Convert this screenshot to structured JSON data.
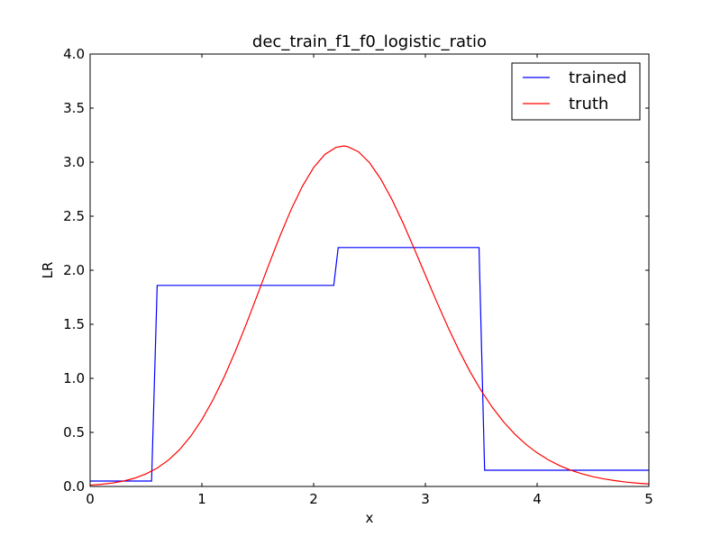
{
  "chart_data": {
    "type": "line",
    "title": "dec_train_f1_f0_logistic_ratio",
    "xlabel": "x",
    "ylabel": "LR",
    "xlim": [
      0,
      5
    ],
    "ylim": [
      0,
      4
    ],
    "x_ticks": [
      0,
      1,
      2,
      3,
      4,
      5
    ],
    "x_tick_labels": [
      "0",
      "1",
      "2",
      "3",
      "4",
      "5"
    ],
    "y_ticks": [
      0,
      0.5,
      1,
      1.5,
      2,
      2.5,
      3,
      3.5,
      4
    ],
    "y_tick_labels": [
      "0.0",
      "0.5",
      "1.0",
      "1.5",
      "2.0",
      "2.5",
      "3.0",
      "3.5",
      "4.0"
    ],
    "grid": false,
    "legend": {
      "position": "top-right"
    },
    "series": [
      {
        "name": "trained",
        "color": "#0000ff",
        "x": [
          0,
          0.55,
          0.6,
          2.18,
          2.22,
          3.48,
          3.53,
          5.0
        ],
        "y": [
          0.05,
          0.05,
          1.86,
          1.86,
          2.21,
          2.21,
          0.15,
          0.15
        ]
      },
      {
        "name": "truth",
        "color": "#ff0000",
        "x": [
          0.0,
          0.1,
          0.2,
          0.3,
          0.4,
          0.5,
          0.6,
          0.7,
          0.8,
          0.9,
          1.0,
          1.1,
          1.2,
          1.3,
          1.4,
          1.5,
          1.6,
          1.7,
          1.8,
          1.9,
          2.0,
          2.1,
          2.2,
          2.27,
          2.3,
          2.4,
          2.5,
          2.6,
          2.7,
          2.8,
          2.9,
          3.0,
          3.1,
          3.2,
          3.3,
          3.4,
          3.5,
          3.6,
          3.7,
          3.8,
          3.9,
          4.0,
          4.1,
          4.2,
          4.3,
          4.4,
          4.5,
          4.6,
          4.7,
          4.8,
          4.9,
          5.0
        ],
        "y": [
          0.012,
          0.02,
          0.032,
          0.05,
          0.077,
          0.116,
          0.17,
          0.243,
          0.34,
          0.464,
          0.618,
          0.802,
          1.014,
          1.252,
          1.51,
          1.781,
          2.055,
          2.32,
          2.565,
          2.778,
          2.95,
          3.071,
          3.137,
          3.15,
          3.145,
          3.097,
          2.995,
          2.845,
          2.656,
          2.437,
          2.2,
          1.955,
          1.712,
          1.478,
          1.26,
          1.061,
          0.885,
          0.73,
          0.597,
          0.484,
          0.389,
          0.311,
          0.246,
          0.193,
          0.151,
          0.117,
          0.09,
          0.069,
          0.053,
          0.04,
          0.03,
          0.023
        ]
      }
    ]
  }
}
